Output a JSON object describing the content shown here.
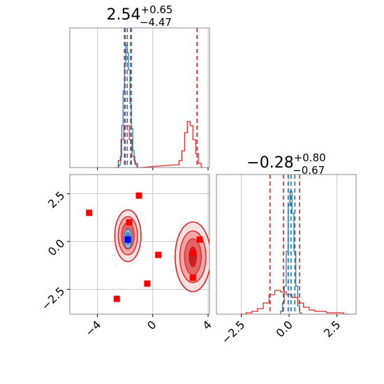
{
  "chart_data": [
    {
      "panel": "marginal-1",
      "type": "histogram",
      "title": {
        "value": "2.54",
        "plus": "+0.65",
        "minus": "−4.47"
      },
      "xlim": [
        -6.0,
        4.1
      ],
      "x_ticks": [
        -4,
        0,
        4
      ],
      "grid": true,
      "series": [
        {
          "color": "#1f77b4",
          "bins_x": [
            -2.4,
            -2.3,
            -2.2,
            -2.1,
            -2.0,
            -1.9,
            -1.8,
            -1.7,
            -1.6,
            -1.5,
            -1.4,
            -1.3,
            -1.2,
            -1.1
          ],
          "counts": [
            0.02,
            0.08,
            0.3,
            0.55,
            0.75,
            0.88,
            0.82,
            0.7,
            0.46,
            0.28,
            0.12,
            0.05,
            0.02,
            0.0
          ],
          "quantile_lines": [
            -2.05,
            -1.85,
            -1.55
          ]
        },
        {
          "color": "#d62728",
          "bins_x": [
            -2.6,
            -2.4,
            -2.2,
            -2.0,
            -1.8,
            -1.6,
            -1.4,
            -1.2,
            -1.0,
            1.8,
            2.0,
            2.2,
            2.4,
            2.6,
            2.8,
            3.0,
            3.2,
            3.4,
            3.6
          ],
          "counts": [
            0.0,
            0.05,
            0.2,
            0.3,
            0.3,
            0.2,
            0.08,
            0.03,
            0.0,
            0.02,
            0.05,
            0.12,
            0.25,
            0.33,
            0.3,
            0.2,
            0.1,
            0.03,
            0.0
          ],
          "quantile_lines": [
            -2.0,
            -1.6,
            3.2
          ]
        }
      ]
    },
    {
      "panel": "joint",
      "type": "contour",
      "xlim": [
        -6.0,
        4.1
      ],
      "ylim": [
        -3.8,
        3.5
      ],
      "x_ticks": [
        -4,
        0,
        4
      ],
      "y_ticks": [
        -2.5,
        0.0,
        2.5
      ],
      "grid": true,
      "red_markers": [
        {
          "x": -4.6,
          "y": 1.5
        },
        {
          "x": -1.0,
          "y": 2.4
        },
        {
          "x": -1.7,
          "y": 1.0
        },
        {
          "x": 0.4,
          "y": -0.7
        },
        {
          "x": -0.4,
          "y": -2.2
        },
        {
          "x": -2.6,
          "y": -3.0
        },
        {
          "x": 2.9,
          "y": -0.6
        },
        {
          "x": 3.4,
          "y": 0.1
        },
        {
          "x": 2.9,
          "y": -1.9
        }
      ],
      "blue_marker": {
        "x": -1.8,
        "y": 0.1
      },
      "red_modes": [
        {
          "x": -1.8,
          "y": 0.3
        },
        {
          "x": 2.9,
          "y": -0.8
        }
      ],
      "blue_mode": {
        "x": -1.8,
        "y": 0.15
      }
    },
    {
      "panel": "marginal-2",
      "type": "histogram",
      "title": {
        "value": "−0.28",
        "plus": "+0.80",
        "minus": "−0.67"
      },
      "xlim": [
        -3.8,
        3.5
      ],
      "x_ticks": [
        -2.5,
        0.0,
        2.5
      ],
      "grid": true,
      "series": [
        {
          "color": "#1f77b4",
          "bins_x": [
            -0.4,
            -0.3,
            -0.2,
            -0.1,
            0.0,
            0.1,
            0.2,
            0.3,
            0.4,
            0.5,
            0.6
          ],
          "counts": [
            0.02,
            0.08,
            0.2,
            0.45,
            0.78,
            0.88,
            0.72,
            0.45,
            0.2,
            0.06,
            0.01
          ],
          "quantile_lines": [
            -0.05,
            0.1,
            0.3
          ]
        },
        {
          "color": "#d62728",
          "bins_x": [
            -2.4,
            -2.1,
            -1.8,
            -1.5,
            -1.2,
            -0.9,
            -0.6,
            -0.3,
            0.0,
            0.3,
            0.6,
            0.9,
            1.2,
            1.5,
            1.8,
            2.1,
            2.4,
            2.7,
            3.0
          ],
          "counts": [
            0.0,
            0.01,
            0.02,
            0.04,
            0.08,
            0.14,
            0.17,
            0.16,
            0.14,
            0.12,
            0.08,
            0.05,
            0.03,
            0.02,
            0.02,
            0.01,
            0.01,
            0.01,
            0.0
          ],
          "quantile_lines": [
            -1.0,
            -0.3,
            0.55
          ]
        }
      ]
    }
  ]
}
